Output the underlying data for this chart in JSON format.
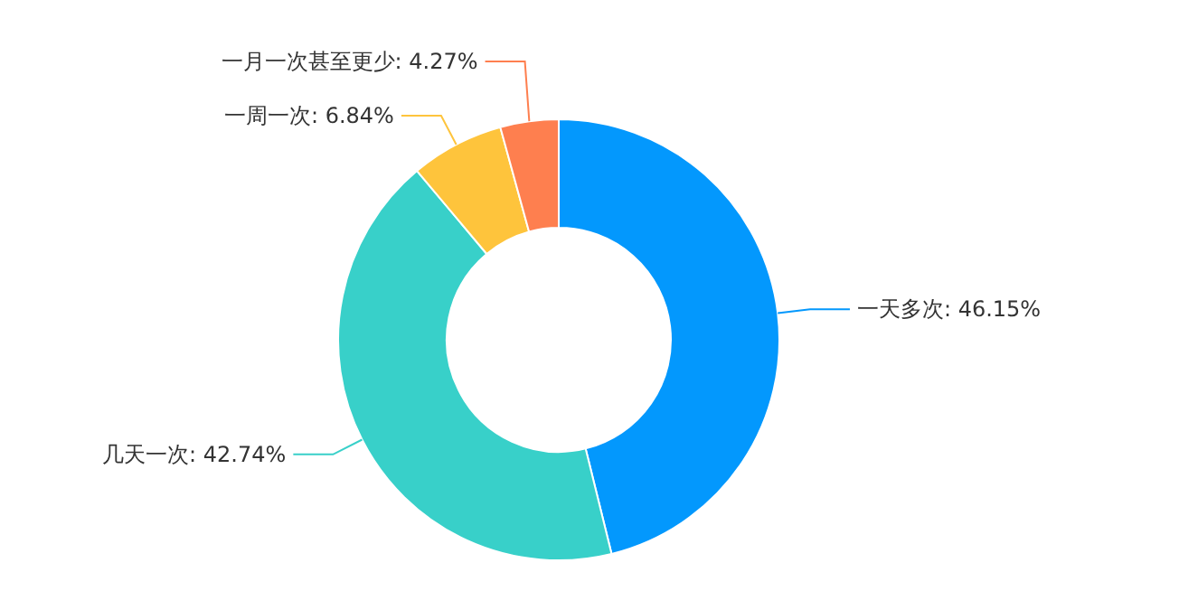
{
  "chart_data": {
    "type": "donut",
    "categories": [
      "一天多次",
      "几天一次",
      "一周一次",
      "一月一次甚至更少"
    ],
    "values": [
      46.15,
      42.74,
      6.84,
      4.27
    ],
    "value_labels": [
      "46.15%",
      "42.74%",
      "6.84%",
      "4.27%"
    ],
    "colors": [
      "#0398fd",
      "#38d0c9",
      "#fec43c",
      "#fe7f4f"
    ]
  }
}
